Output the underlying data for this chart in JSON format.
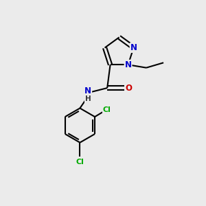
{
  "background_color": "#ebebeb",
  "bond_color": "#000000",
  "bond_width": 1.5,
  "atom_colors": {
    "N": "#0000cc",
    "O": "#cc0000",
    "Cl": "#00aa00",
    "C": "#000000",
    "H": "#000000"
  },
  "font_size_atoms": 8.5,
  "font_size_H": 7.5
}
